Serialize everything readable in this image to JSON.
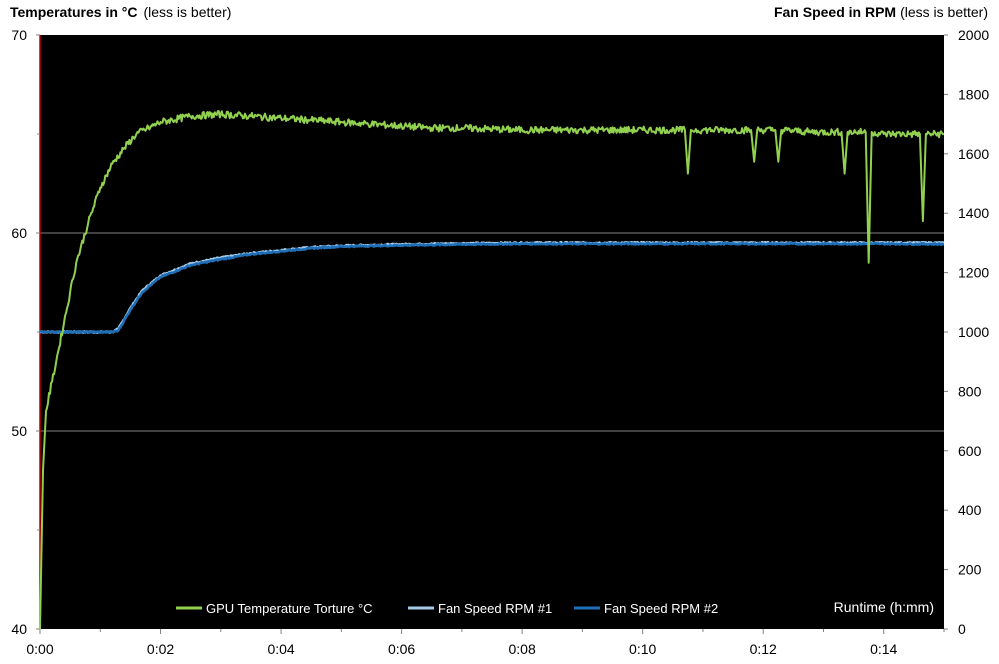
{
  "chart_data": {
    "type": "line",
    "title_left": {
      "bold": "Temperatures in °C",
      "normal": "(less is better)"
    },
    "title_right": {
      "bold": "Fan Speed in RPM",
      "normal": "(less is better)"
    },
    "xlabel": "Runtime  (h:mm)",
    "x_ticks": [
      "0:00",
      "0:02",
      "0:04",
      "0:06",
      "0:08",
      "0:10",
      "0:12",
      "0:14"
    ],
    "x_range_minutes": [
      0,
      15
    ],
    "y_left": {
      "range": [
        40,
        70
      ],
      "ticks": [
        "40",
        "50",
        "60",
        "70"
      ],
      "gridlines": [
        50,
        60
      ]
    },
    "y_right": {
      "range": [
        0,
        2000
      ],
      "ticks": [
        "0",
        "200",
        "400",
        "600",
        "800",
        "1000",
        "1200",
        "1400",
        "1600",
        "1800",
        "2000"
      ]
    },
    "background": "#000000",
    "legend_position": "bottom",
    "series": [
      {
        "name": "GPU Temperature Torture °C",
        "axis": "left",
        "color": "#92d050",
        "x": [
          0,
          0.05,
          0.1,
          0.2,
          0.3,
          0.4,
          0.5,
          0.6,
          0.8,
          1.0,
          1.2,
          1.4,
          1.6,
          1.8,
          2.0,
          2.5,
          3.0,
          3.5,
          4.0,
          4.5,
          5.0,
          5.5,
          6.0,
          6.5,
          7.0,
          8.0,
          9.0,
          10.0,
          10.7,
          10.75,
          10.8,
          11.0,
          11.5,
          11.8,
          11.85,
          11.9,
          12.2,
          12.25,
          12.3,
          12.8,
          13.3,
          13.35,
          13.4,
          13.7,
          13.75,
          13.8,
          14.0,
          14.5,
          14.6,
          14.65,
          14.7,
          15.0
        ],
        "y": [
          40,
          48,
          51,
          52.5,
          54.0,
          55.5,
          57.0,
          58.5,
          60.5,
          62.3,
          63.5,
          64.3,
          65.0,
          65.3,
          65.6,
          65.9,
          66.0,
          65.9,
          65.8,
          65.7,
          65.6,
          65.5,
          65.4,
          65.3,
          65.3,
          65.2,
          65.2,
          65.2,
          65.2,
          63.0,
          65.2,
          65.2,
          65.2,
          65.2,
          63.6,
          65.2,
          65.2,
          63.6,
          65.2,
          65.1,
          65.1,
          63.0,
          65.1,
          65.1,
          58.5,
          65.1,
          65.0,
          65.0,
          65.0,
          60.6,
          65.0,
          65.0
        ]
      },
      {
        "name": "Fan Speed RPM #1",
        "axis": "right",
        "color": "#a6cbe8",
        "x": [
          0,
          1.2,
          1.3,
          1.5,
          1.7,
          2.0,
          2.5,
          3.0,
          3.5,
          4.0,
          4.5,
          5.0,
          6.0,
          7.0,
          8.0,
          10.0,
          12.0,
          14.0,
          15.0
        ],
        "y": [
          1000,
          1000,
          1010,
          1080,
          1140,
          1190,
          1230,
          1250,
          1265,
          1275,
          1285,
          1290,
          1295,
          1298,
          1300,
          1300,
          1300,
          1300,
          1300
        ]
      },
      {
        "name": "Fan Speed RPM #2",
        "axis": "right",
        "color": "#1f6fb8",
        "x": [
          0,
          1.2,
          1.3,
          1.5,
          1.7,
          2.0,
          2.5,
          3.0,
          3.5,
          4.0,
          4.5,
          5.0,
          6.0,
          7.0,
          8.0,
          10.0,
          12.0,
          14.0,
          15.0
        ],
        "y": [
          1000,
          1000,
          1005,
          1075,
          1135,
          1185,
          1225,
          1245,
          1262,
          1272,
          1282,
          1288,
          1292,
          1295,
          1297,
          1297,
          1297,
          1297,
          1296
        ]
      }
    ]
  }
}
